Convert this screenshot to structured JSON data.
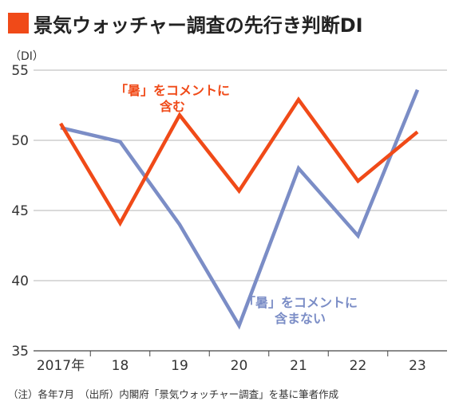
{
  "header": {
    "title": "景気ウォッチャー調査の先行き判断DI",
    "unit": "（DI）"
  },
  "footnote": "（注）各年7月　（出所）内閣府「景気ウォッチャー調査」を基に筆者作成",
  "colors": {
    "accent": "#f04a18",
    "series_blue": "#7b8dc6",
    "series_red": "#f04a18",
    "grid": "#b5b5b5"
  },
  "chart_data": {
    "type": "line",
    "title": "景気ウォッチャー調査の先行き判断DI",
    "ylabel": "（DI）",
    "xlabel": "",
    "categories": [
      "2017年",
      "18",
      "19",
      "20",
      "21",
      "22",
      "23"
    ],
    "ylim": [
      35,
      55
    ],
    "yticks": [
      35,
      40,
      45,
      50,
      55
    ],
    "grid": "horizontal",
    "series": [
      {
        "name": "「暑」をコメントに含む",
        "color": "#f04a18",
        "values": [
          51.2,
          44.1,
          51.8,
          46.4,
          52.9,
          47.1,
          50.6
        ]
      },
      {
        "name": "「暑」をコメントに含まない",
        "color": "#7b8dc6",
        "values": [
          50.9,
          49.9,
          44.0,
          36.8,
          48.0,
          43.2,
          53.6
        ]
      }
    ],
    "annotations": [
      {
        "series": 0,
        "lines": [
          "「暑」をコメントに",
          "含む"
        ]
      },
      {
        "series": 1,
        "lines": [
          "「暑」をコメントに",
          "含まない"
        ]
      }
    ]
  }
}
